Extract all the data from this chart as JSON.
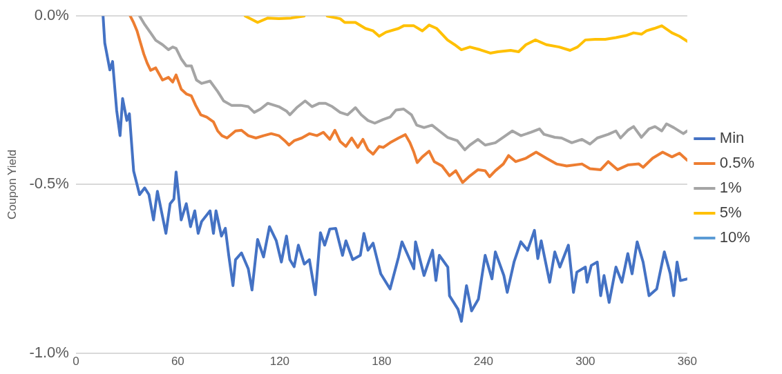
{
  "chart_data": {
    "type": "line",
    "ylabel": "Coupon Yield",
    "xlim": [
      0,
      360
    ],
    "xticks": [
      0,
      60,
      120,
      180,
      240,
      300,
      360
    ],
    "ylim": [
      -1.0,
      0.0
    ],
    "yticks": [
      {
        "value": -1.0,
        "label": "-1.0%"
      },
      {
        "value": -0.5,
        "label": "-0.5%"
      },
      {
        "value": 0.0,
        "label": "0.0%"
      }
    ],
    "grid": "y",
    "legend": "right",
    "marker": "none",
    "line_style": "solid",
    "series": [
      {
        "name": "Min",
        "color": "#4472c4",
        "x": [
          16,
          17,
          20,
          21.6,
          24,
          26,
          27.5,
          30,
          31.5,
          34,
          37.5,
          40.5,
          43,
          45.7,
          48,
          50,
          53,
          55.5,
          57.7,
          59,
          62,
          65,
          67.5,
          70,
          72,
          74,
          79,
          81,
          82.5,
          85.7,
          88,
          90,
          92.5,
          94,
          97.5,
          101.5,
          103.7,
          107,
          110.5,
          114,
          118,
          121,
          124,
          126,
          128.5,
          131,
          134.5,
          137.5,
          141,
          144,
          146.5,
          149.5,
          153,
          157,
          159,
          163,
          167.5,
          169.6,
          172,
          175,
          179.5,
          185,
          190,
          192,
          199,
          200,
          205,
          210,
          212,
          214,
          219,
          220,
          225,
          227,
          230,
          233,
          237,
          241,
          245,
          247,
          252,
          254,
          258,
          262,
          266,
          270,
          272,
          274,
          279,
          282,
          285,
          290,
          293,
          295,
          300,
          301,
          303.5,
          307,
          309,
          311,
          314,
          318,
          321.5,
          325,
          327.5,
          330.5,
          334,
          337.5,
          342,
          346.5,
          350,
          352,
          354,
          356,
          360
        ],
        "values": [
          0.0,
          -0.08,
          -0.16,
          -0.135,
          -0.28,
          -0.355,
          -0.245,
          -0.31,
          -0.29,
          -0.46,
          -0.53,
          -0.51,
          -0.53,
          -0.605,
          -0.52,
          -0.57,
          -0.645,
          -0.557,
          -0.543,
          -0.463,
          -0.605,
          -0.557,
          -0.625,
          -0.578,
          -0.645,
          -0.61,
          -0.578,
          -0.645,
          -0.578,
          -0.653,
          -0.63,
          -0.71,
          -0.8,
          -0.723,
          -0.703,
          -0.75,
          -0.813,
          -0.663,
          -0.715,
          -0.625,
          -0.667,
          -0.73,
          -0.653,
          -0.723,
          -0.744,
          -0.68,
          -0.736,
          -0.723,
          -0.827,
          -0.643,
          -0.68,
          -0.632,
          -0.63,
          -0.71,
          -0.667,
          -0.723,
          -0.71,
          -0.645,
          -0.695,
          -0.674,
          -0.765,
          -0.81,
          -0.715,
          -0.67,
          -0.75,
          -0.67,
          -0.77,
          -0.695,
          -0.785,
          -0.71,
          -0.745,
          -0.83,
          -0.87,
          -0.906,
          -0.8,
          -0.875,
          -0.84,
          -0.71,
          -0.78,
          -0.7,
          -0.77,
          -0.82,
          -0.73,
          -0.67,
          -0.695,
          -0.636,
          -0.72,
          -0.667,
          -0.79,
          -0.7,
          -0.745,
          -0.68,
          -0.82,
          -0.76,
          -0.745,
          -0.79,
          -0.74,
          -0.73,
          -0.83,
          -0.77,
          -0.85,
          -0.745,
          -0.79,
          -0.705,
          -0.765,
          -0.67,
          -0.73,
          -0.83,
          -0.81,
          -0.7,
          -0.765,
          -0.83,
          -0.73,
          -0.785,
          -0.78
        ]
      },
      {
        "name": "0.5%",
        "color": "#ed7d31",
        "x": [
          32,
          34,
          36,
          38,
          40,
          42,
          44,
          47,
          51,
          54.5,
          57,
          59,
          62,
          65,
          68,
          70.5,
          73.5,
          77,
          81,
          83.5,
          86,
          89,
          94,
          97.5,
          101.5,
          106,
          110.5,
          115,
          119.5,
          123,
          125.5,
          128.5,
          133,
          137.5,
          142,
          145.7,
          149.5,
          152.5,
          155.6,
          159,
          162.4,
          166,
          169,
          172,
          175,
          178.6,
          181,
          185,
          190,
          194,
          196.7,
          199,
          201,
          204,
          208,
          211,
          215.6,
          220,
          223.7,
          227.7,
          231.4,
          236.8,
          241,
          243.6,
          247,
          251.7,
          254.8,
          259,
          265,
          271,
          277,
          283,
          289,
          298,
          302.7,
          309,
          313.5,
          319,
          325,
          331.5,
          334,
          339.6,
          345.5,
          351,
          355.4,
          360
        ],
        "values": [
          0.0,
          -0.02,
          -0.044,
          -0.079,
          -0.113,
          -0.14,
          -0.161,
          -0.154,
          -0.19,
          -0.182,
          -0.196,
          -0.175,
          -0.217,
          -0.231,
          -0.237,
          -0.265,
          -0.293,
          -0.3,
          -0.314,
          -0.341,
          -0.355,
          -0.362,
          -0.341,
          -0.339,
          -0.355,
          -0.362,
          -0.355,
          -0.349,
          -0.355,
          -0.37,
          -0.383,
          -0.37,
          -0.362,
          -0.349,
          -0.355,
          -0.345,
          -0.366,
          -0.339,
          -0.372,
          -0.387,
          -0.362,
          -0.39,
          -0.366,
          -0.397,
          -0.41,
          -0.387,
          -0.39,
          -0.376,
          -0.362,
          -0.352,
          -0.376,
          -0.404,
          -0.435,
          -0.418,
          -0.401,
          -0.432,
          -0.445,
          -0.474,
          -0.459,
          -0.494,
          -0.477,
          -0.456,
          -0.459,
          -0.477,
          -0.459,
          -0.439,
          -0.414,
          -0.432,
          -0.422,
          -0.404,
          -0.422,
          -0.439,
          -0.445,
          -0.439,
          -0.453,
          -0.456,
          -0.432,
          -0.456,
          -0.442,
          -0.439,
          -0.449,
          -0.422,
          -0.404,
          -0.418,
          -0.407,
          -0.428
        ]
      },
      {
        "name": "1%",
        "color": "#a5a5a5",
        "x": [
          37.5,
          40.5,
          44,
          47,
          51,
          54.5,
          57,
          59,
          62,
          65,
          68,
          71,
          74,
          79,
          83.5,
          87,
          91.6,
          97,
          101.5,
          105,
          108.7,
          113,
          119.5,
          124,
          126,
          130,
          135,
          139,
          143.4,
          147,
          151,
          155.6,
          160,
          164.6,
          168,
          172,
          176,
          181,
          185,
          188.5,
          193,
          197.6,
          200.7,
          205,
          209.7,
          214,
          218.8,
          224.6,
          229,
          232,
          236.8,
          241,
          247,
          253,
          257,
          262,
          268,
          273,
          275.6,
          282,
          286,
          292,
          298,
          302.7,
          307,
          313.5,
          318,
          320.7,
          325,
          328.4,
          333,
          337.4,
          341,
          345,
          347.8,
          352,
          357.7,
          360
        ],
        "values": [
          0.0,
          -0.025,
          -0.05,
          -0.072,
          -0.085,
          -0.1,
          -0.092,
          -0.096,
          -0.127,
          -0.148,
          -0.148,
          -0.19,
          -0.2,
          -0.193,
          -0.224,
          -0.252,
          -0.265,
          -0.265,
          -0.269,
          -0.286,
          -0.276,
          -0.259,
          -0.269,
          -0.282,
          -0.293,
          -0.272,
          -0.252,
          -0.269,
          -0.259,
          -0.259,
          -0.269,
          -0.286,
          -0.293,
          -0.272,
          -0.293,
          -0.31,
          -0.318,
          -0.307,
          -0.3,
          -0.279,
          -0.276,
          -0.293,
          -0.324,
          -0.331,
          -0.324,
          -0.341,
          -0.36,
          -0.37,
          -0.397,
          -0.383,
          -0.366,
          -0.383,
          -0.376,
          -0.355,
          -0.341,
          -0.355,
          -0.345,
          -0.335,
          -0.351,
          -0.36,
          -0.362,
          -0.376,
          -0.366,
          -0.38,
          -0.362,
          -0.351,
          -0.341,
          -0.362,
          -0.339,
          -0.328,
          -0.36,
          -0.335,
          -0.328,
          -0.341,
          -0.32,
          -0.331,
          -0.349,
          -0.341
        ]
      },
      {
        "name": "5%",
        "color": "#ffc000",
        "x": [
          99.7,
          107,
          113,
          119.5,
          126.7,
          134.4,
          141,
          148,
          155.6,
          158.3,
          164.6,
          170.5,
          175,
          178.6,
          182.6,
          190,
          193,
          199,
          204,
          208,
          212.5,
          218.8,
          223,
          227,
          232,
          238,
          244,
          248.5,
          256,
          260.7,
          265,
          270.6,
          277,
          284.6,
          291,
          295.4,
          300,
          305.8,
          311.7,
          318,
          323.9,
          328.4,
          333,
          336,
          340.5,
          345,
          351,
          355.4,
          360
        ],
        "values": [
          0.0,
          -0.019,
          -0.006,
          -0.008,
          -0.006,
          0.0,
          null,
          0.0,
          -0.008,
          -0.019,
          -0.019,
          -0.037,
          -0.044,
          -0.06,
          -0.048,
          -0.037,
          -0.029,
          -0.029,
          -0.044,
          -0.027,
          -0.037,
          -0.071,
          -0.085,
          -0.1,
          -0.092,
          -0.1,
          -0.11,
          -0.106,
          -0.102,
          -0.106,
          -0.085,
          -0.071,
          -0.085,
          -0.092,
          -0.102,
          -0.092,
          -0.071,
          -0.069,
          -0.069,
          -0.064,
          -0.058,
          -0.05,
          -0.054,
          -0.044,
          -0.037,
          -0.029,
          -0.05,
          -0.06,
          -0.075
        ]
      },
      {
        "name": "10%",
        "color": "#5b9bd5"
      }
    ]
  }
}
